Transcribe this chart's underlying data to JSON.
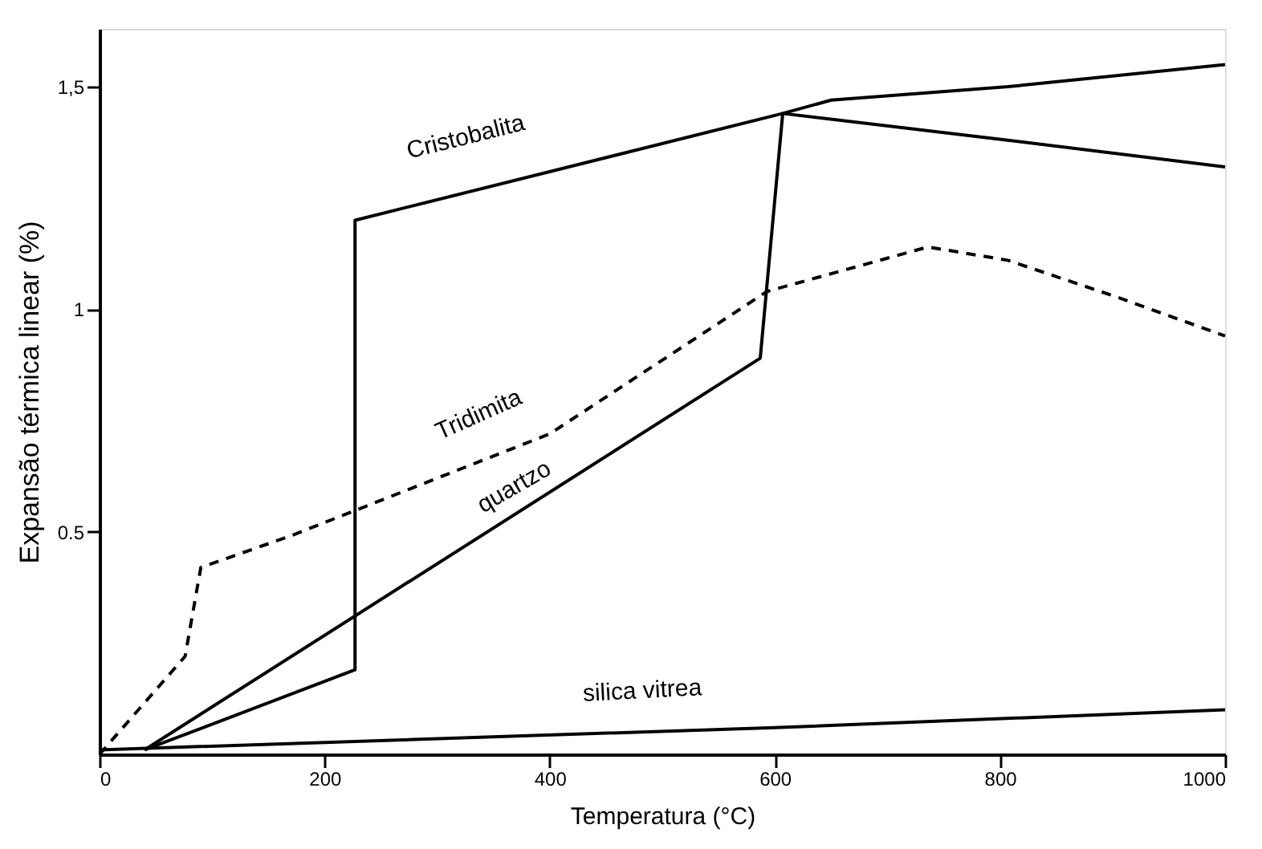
{
  "chart_data": {
    "type": "line",
    "xlabel": "Temperatura (°C)",
    "ylabel": "Expansão térmica linear (%)",
    "xlim": [
      0,
      1000
    ],
    "ylim": [
      0,
      1.63
    ],
    "xticks": [
      0,
      200,
      400,
      600,
      800,
      1000
    ],
    "yticks": [
      {
        "value": 0.5,
        "label": "0.5"
      },
      {
        "value": 1,
        "label": "1"
      },
      {
        "value": 1.5,
        "label": "1,5"
      }
    ],
    "grid": false,
    "series": [
      {
        "name": "Cristobalita",
        "color": "#000000",
        "line_style": "solid",
        "x": [
          40,
          227,
          227,
          607,
          650,
          807,
          1000
        ],
        "values": [
          0.01,
          0.19,
          1.2,
          1.44,
          1.47,
          1.5,
          1.55
        ]
      },
      {
        "name": "quartzo",
        "color": "#000000",
        "line_style": "solid",
        "x": [
          40,
          587,
          607,
          807,
          1000
        ],
        "values": [
          0.01,
          0.89,
          1.44,
          1.38,
          1.32
        ]
      },
      {
        "name": "Tridimita",
        "color": "#000000",
        "line_style": "dashed",
        "x": [
          0,
          76,
          90,
          169,
          400,
          593,
          736,
          807,
          901,
          1000
        ],
        "values": [
          0,
          0.22,
          0.42,
          0.49,
          0.72,
          1.04,
          1.14,
          1.11,
          1.03,
          0.94
        ]
      },
      {
        "name": "silica vitrea",
        "color": "#000000",
        "line_style": "solid",
        "x": [
          0,
          600,
          1000
        ],
        "values": [
          0.01,
          0.06,
          0.1
        ]
      }
    ]
  }
}
